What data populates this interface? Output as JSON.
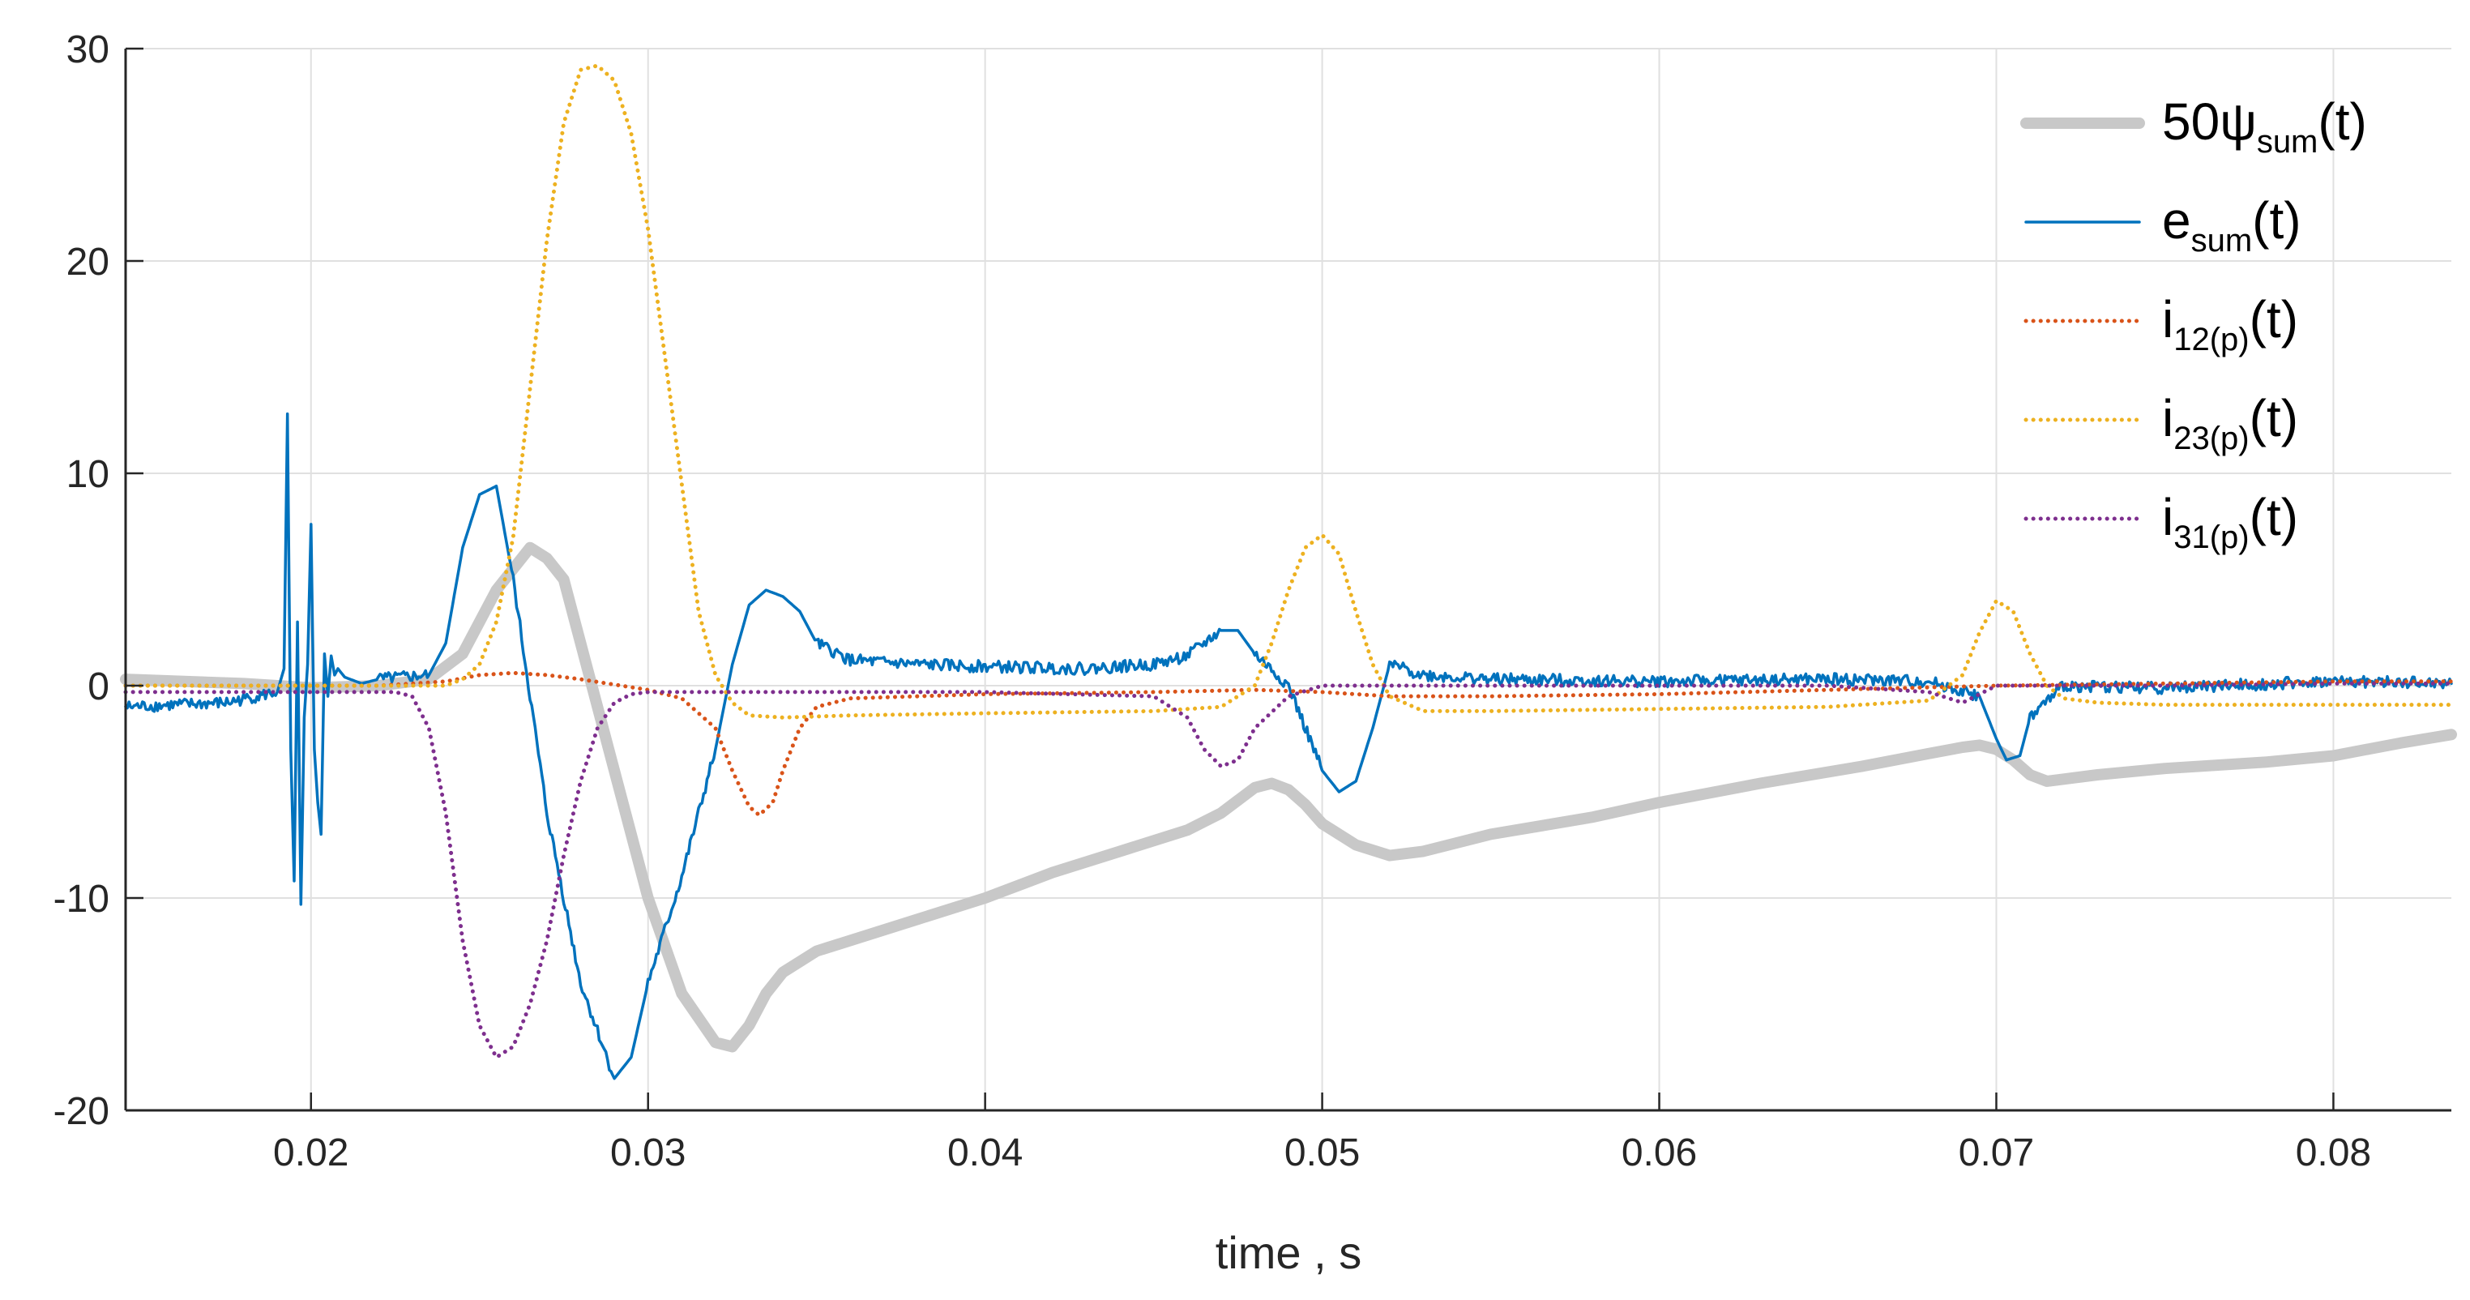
{
  "chart_data": {
    "type": "line",
    "title": "",
    "xlabel": "time , s",
    "ylabel": "",
    "xlim": [
      0.0145,
      0.0835
    ],
    "ylim": [
      -20,
      30
    ],
    "grid": true,
    "legend_position": "top-right",
    "x_ticks": [
      0.02,
      0.03,
      0.04,
      0.05,
      0.06,
      0.07,
      0.08
    ],
    "x_tick_labels": [
      "0.02",
      "0.03",
      "0.04",
      "0.05",
      "0.06",
      "0.07",
      "0.08"
    ],
    "y_ticks": [
      -20,
      -10,
      0,
      10,
      20,
      30
    ],
    "y_tick_labels": [
      "-20",
      "-10",
      "0",
      "10",
      "20",
      "30"
    ],
    "legend": [
      {
        "prefix": "50ψ",
        "sub": "sum",
        "suffix": "(t)"
      },
      {
        "prefix": "e",
        "sub": "sum",
        "suffix": "(t)"
      },
      {
        "prefix": "i",
        "sub": "12(p)",
        "suffix": "(t)"
      },
      {
        "prefix": "i",
        "sub": "23(p)",
        "suffix": "(t)"
      },
      {
        "prefix": "i",
        "sub": "31(p)",
        "suffix": "(t)"
      }
    ],
    "series": [
      {
        "color": "#c8c8c8",
        "style": "solid",
        "width": 14,
        "x": [
          0.0145,
          0.018,
          0.02,
          0.022,
          0.0235,
          0.0245,
          0.0255,
          0.0265,
          0.027,
          0.0275,
          0.028,
          0.029,
          0.03,
          0.031,
          0.032,
          0.0325,
          0.033,
          0.0335,
          0.034,
          0.035,
          0.036,
          0.038,
          0.04,
          0.042,
          0.044,
          0.046,
          0.047,
          0.0475,
          0.048,
          0.0485,
          0.049,
          0.0495,
          0.05,
          0.051,
          0.052,
          0.053,
          0.055,
          0.058,
          0.06,
          0.063,
          0.066,
          0.068,
          0.069,
          0.0695,
          0.07,
          0.0705,
          0.071,
          0.0715,
          0.072,
          0.073,
          0.075,
          0.078,
          0.08,
          0.082,
          0.0835
        ],
        "y": [
          0.3,
          0.1,
          -0.1,
          0.0,
          0.3,
          1.5,
          4.5,
          6.5,
          6.0,
          5.0,
          2.0,
          -4.0,
          -10.0,
          -14.5,
          -16.8,
          -17.0,
          -16.0,
          -14.5,
          -13.5,
          -12.5,
          -12.0,
          -11.0,
          -10.0,
          -8.8,
          -7.8,
          -6.8,
          -6.0,
          -5.4,
          -4.8,
          -4.6,
          -4.9,
          -5.6,
          -6.5,
          -7.5,
          -8.0,
          -7.8,
          -7.0,
          -6.2,
          -5.5,
          -4.6,
          -3.8,
          -3.2,
          -2.9,
          -2.8,
          -3.0,
          -3.5,
          -4.2,
          -4.5,
          -4.4,
          -4.2,
          -3.9,
          -3.6,
          -3.3,
          -2.7,
          -2.3
        ]
      },
      {
        "color": "#0072bd",
        "style": "solid",
        "width": 3.5,
        "noise": 0.28,
        "x": [
          0.0145,
          0.0175,
          0.019,
          0.0192,
          0.0193,
          0.0194,
          0.0195,
          0.0196,
          0.0197,
          0.0198,
          0.0199,
          0.02,
          0.0201,
          0.0202,
          0.0203,
          0.0204,
          0.0205,
          0.0206,
          0.0207,
          0.0208,
          0.021,
          0.0215,
          0.022,
          0.0235,
          0.024,
          0.0245,
          0.025,
          0.0255,
          0.026,
          0.027,
          0.028,
          0.029,
          0.0295,
          0.03,
          0.031,
          0.032,
          0.0325,
          0.033,
          0.0335,
          0.034,
          0.0345,
          0.035,
          0.036,
          0.038,
          0.04,
          0.043,
          0.045,
          0.046,
          0.047,
          0.0475,
          0.048,
          0.049,
          0.05,
          0.0505,
          0.051,
          0.0515,
          0.052,
          0.053,
          0.055,
          0.06,
          0.065,
          0.068,
          0.0695,
          0.07,
          0.0703,
          0.0707,
          0.071,
          0.072,
          0.075,
          0.08,
          0.0835
        ],
        "y": [
          -1.0,
          -0.8,
          -0.3,
          0.8,
          12.8,
          -3.0,
          -9.2,
          3.0,
          -10.3,
          -1.5,
          1.0,
          7.6,
          -3.0,
          -5.5,
          -7.0,
          1.5,
          -0.5,
          1.4,
          0.5,
          0.8,
          0.4,
          0.1,
          0.3,
          0.5,
          2.0,
          6.5,
          9.0,
          9.4,
          5.0,
          -6.0,
          -14.0,
          -18.5,
          -17.5,
          -14.0,
          -9.0,
          -3.0,
          1.0,
          3.8,
          4.5,
          4.2,
          3.5,
          2.0,
          1.2,
          1.0,
          0.9,
          0.8,
          1.0,
          1.4,
          2.6,
          2.6,
          1.5,
          0.0,
          -4.0,
          -5.0,
          -4.5,
          -2.0,
          1.0,
          0.5,
          0.3,
          0.2,
          0.3,
          0.2,
          -0.5,
          -2.5,
          -3.5,
          -3.3,
          -1.5,
          0.0,
          -0.1,
          0.2,
          0.1
        ]
      },
      {
        "color": "#d95319",
        "style": "dotted",
        "width": 5,
        "x": [
          0.0145,
          0.022,
          0.024,
          0.025,
          0.026,
          0.027,
          0.028,
          0.03,
          0.031,
          0.032,
          0.0325,
          0.033,
          0.0333,
          0.0337,
          0.034,
          0.0345,
          0.035,
          0.036,
          0.04,
          0.045,
          0.048,
          0.05,
          0.052,
          0.055,
          0.06,
          0.065,
          0.07,
          0.075,
          0.08,
          0.0835
        ],
        "y": [
          0.0,
          0.0,
          0.2,
          0.5,
          0.6,
          0.5,
          0.3,
          -0.2,
          -0.6,
          -2.0,
          -4.0,
          -5.7,
          -6.1,
          -5.5,
          -4.0,
          -2.0,
          -1.0,
          -0.6,
          -0.4,
          -0.3,
          -0.2,
          -0.3,
          -0.5,
          -0.5,
          -0.4,
          -0.2,
          0.0,
          0.1,
          0.2,
          0.2
        ]
      },
      {
        "color": "#edb120",
        "style": "dotted",
        "width": 5,
        "x": [
          0.0145,
          0.022,
          0.024,
          0.0245,
          0.025,
          0.0255,
          0.026,
          0.0265,
          0.027,
          0.0275,
          0.028,
          0.0285,
          0.029,
          0.0295,
          0.03,
          0.0305,
          0.031,
          0.0315,
          0.032,
          0.0325,
          0.033,
          0.034,
          0.036,
          0.04,
          0.045,
          0.047,
          0.048,
          0.0485,
          0.049,
          0.0495,
          0.05,
          0.0505,
          0.051,
          0.0515,
          0.052,
          0.053,
          0.055,
          0.06,
          0.065,
          0.068,
          0.069,
          0.0695,
          0.07,
          0.0705,
          0.071,
          0.0715,
          0.072,
          0.073,
          0.075,
          0.08,
          0.0835
        ],
        "y": [
          0.0,
          0.0,
          0.0,
          0.3,
          1.0,
          3.0,
          7.0,
          14.0,
          21.0,
          26.5,
          29.0,
          29.2,
          28.5,
          26.0,
          21.5,
          15.5,
          9.5,
          3.5,
          0.5,
          -0.8,
          -1.4,
          -1.5,
          -1.4,
          -1.3,
          -1.2,
          -1.0,
          0.0,
          2.0,
          4.5,
          6.5,
          7.1,
          6.2,
          3.5,
          1.0,
          -0.5,
          -1.2,
          -1.2,
          -1.1,
          -1.0,
          -0.7,
          0.5,
          2.5,
          4.0,
          3.5,
          1.5,
          0.0,
          -0.6,
          -0.8,
          -0.9,
          -0.9,
          -0.9
        ]
      },
      {
        "color": "#7e2f8e",
        "style": "dotted",
        "width": 5,
        "x": [
          0.0145,
          0.02,
          0.0225,
          0.023,
          0.0235,
          0.024,
          0.0245,
          0.025,
          0.0255,
          0.026,
          0.0265,
          0.027,
          0.0275,
          0.028,
          0.0285,
          0.029,
          0.0295,
          0.03,
          0.031,
          0.032,
          0.035,
          0.04,
          0.045,
          0.046,
          0.0465,
          0.047,
          0.0475,
          0.048,
          0.049,
          0.05,
          0.055,
          0.06,
          0.065,
          0.068,
          0.069,
          0.07,
          0.075,
          0.08,
          0.0835
        ],
        "y": [
          -0.3,
          -0.3,
          -0.3,
          -0.5,
          -2.0,
          -6.0,
          -12.0,
          -16.0,
          -17.5,
          -17.0,
          -15.0,
          -12.0,
          -8.0,
          -4.5,
          -2.0,
          -0.8,
          -0.4,
          -0.3,
          -0.3,
          -0.3,
          -0.3,
          -0.3,
          -0.5,
          -1.5,
          -3.0,
          -3.8,
          -3.5,
          -2.0,
          -0.5,
          0.0,
          0.0,
          0.0,
          0.0,
          -0.3,
          -0.8,
          0.0,
          0.0,
          0.1,
          0.1
        ]
      }
    ]
  }
}
